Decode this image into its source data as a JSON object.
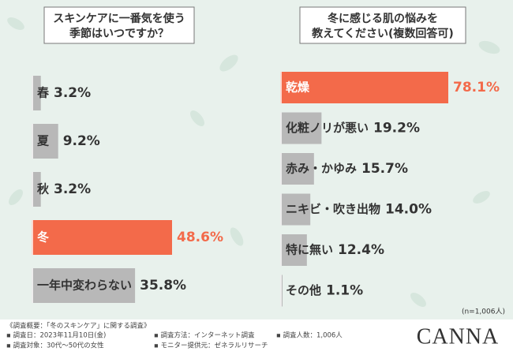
{
  "chart_data": [
    {
      "type": "hbar",
      "title": [
        "スキンケアに一番気を使う",
        "季節はいつですか？"
      ],
      "categories": [
        "春",
        "夏",
        "秋",
        "冬",
        "一年中変わらない"
      ],
      "values": [
        3.2,
        9.2,
        3.2,
        48.6,
        35.8
      ],
      "value_labels": [
        "3.2%",
        "9.2%",
        "3.2%",
        "48.6%",
        "35.8%"
      ],
      "colors": [
        "#b8b8b8",
        "#b8b8b8",
        "#b8b8b8",
        "#f36a4a",
        "#b8b8b8"
      ]
    },
    {
      "type": "hbar",
      "title": [
        "冬に感じる肌の悩みを",
        "教えてください(複数回答可)"
      ],
      "categories": [
        "乾燥",
        "化粧ノリが悪い",
        "赤み・かゆみ",
        "ニキビ・吹き出物",
        "特に無い",
        "その他"
      ],
      "values": [
        78.1,
        19.2,
        15.7,
        14.0,
        12.4,
        1.1
      ],
      "value_labels": [
        "78.1%",
        "19.2%",
        "15.7%",
        "14.0%",
        "12.4%",
        "1.1%"
      ],
      "colors": [
        "#f36a4a",
        "#b8b8b8",
        "#b8b8b8",
        "#b8b8b8",
        "#b8b8b8",
        "#b8b8b8"
      ]
    }
  ],
  "sample_note": "(n=1,006人)",
  "notes": [
    "《調査概要：「冬のスキンケア」に関する調査》",
    "▪ 調査日：2023年11月10日(金)",
    "▪ 調査方法：インターネット調査",
    "▪ 調査人数：1,006人",
    "▪ 調査対象：30代〜50代の女性",
    "▪ モニター提供元：ゼネラルリサーチ"
  ],
  "brand": "CANNA"
}
